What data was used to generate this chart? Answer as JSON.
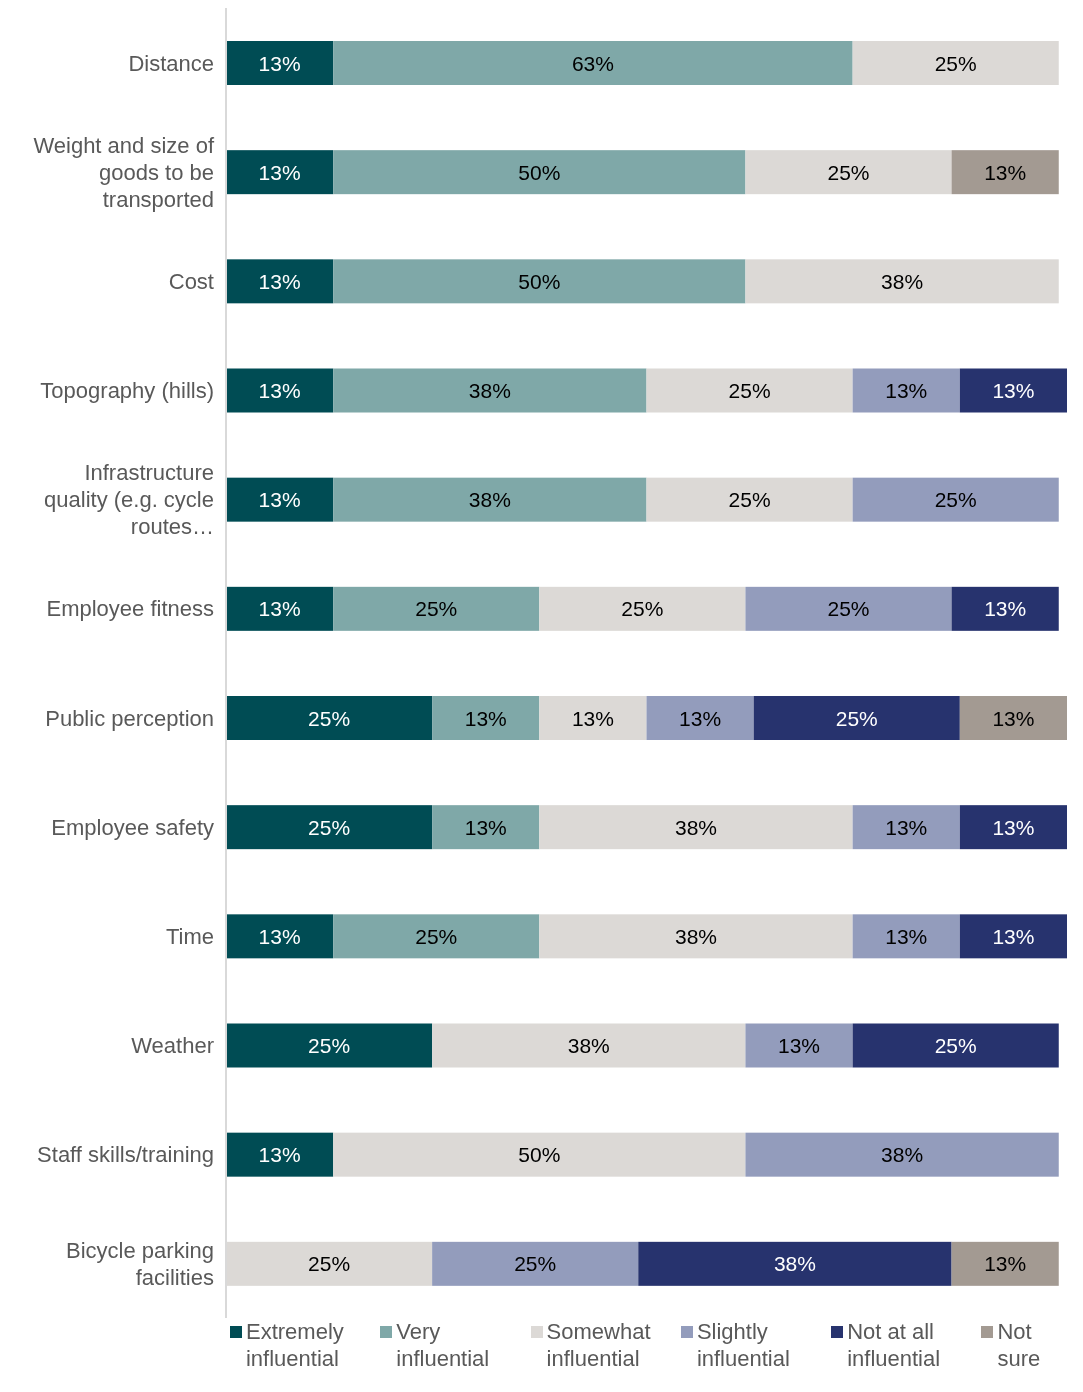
{
  "chart_data": {
    "type": "bar",
    "orientation": "horizontal",
    "stacked": true,
    "legend": "bottom",
    "categories": [
      "Distance",
      "Weight and size of goods to be transported",
      "Cost",
      "Topography (hills)",
      "Infrastructure quality (e.g. cycle routes…",
      "Employee fitness",
      "Public perception",
      "Employee safety",
      "Time",
      "Weather",
      "Staff skills/training",
      "Bicycle parking facilities"
    ],
    "series": [
      {
        "name": "Extremely influential",
        "color": "#004c54",
        "values": [
          13,
          13,
          13,
          13,
          13,
          13,
          25,
          25,
          13,
          25,
          13,
          null
        ],
        "value_labels": [
          "13%",
          "13%",
          "13%",
          "13%",
          "13%",
          "13%",
          "25%",
          "25%",
          "13%",
          "25%",
          "13%",
          null
        ]
      },
      {
        "name": "Very influential",
        "color": "#7fa8a8",
        "values": [
          63,
          50,
          50,
          38,
          38,
          25,
          13,
          13,
          25,
          null,
          null,
          null
        ],
        "value_labels": [
          "63%",
          "50%",
          "50%",
          "38%",
          "38%",
          "25%",
          "13%",
          "13%",
          "25%",
          null,
          null,
          null
        ]
      },
      {
        "name": "Somewhat influential",
        "color": "#dcd9d6",
        "values": [
          25,
          25,
          38,
          25,
          25,
          25,
          13,
          38,
          38,
          38,
          50,
          25
        ],
        "value_labels": [
          "25%",
          "25%",
          "38%",
          "25%",
          "25%",
          "25%",
          "13%",
          "38%",
          "38%",
          "38%",
          "50%",
          "25%"
        ]
      },
      {
        "name": "Slightly influential",
        "color": "#939cbc",
        "values": [
          null,
          null,
          null,
          13,
          25,
          25,
          13,
          13,
          13,
          13,
          38,
          25
        ],
        "value_labels": [
          null,
          null,
          null,
          "13%",
          "25%",
          "25%",
          "13%",
          "13%",
          "13%",
          "13%",
          "38%",
          "25%"
        ]
      },
      {
        "name": "Not at all influential",
        "color": "#27336e",
        "values": [
          null,
          null,
          null,
          13,
          null,
          13,
          25,
          13,
          13,
          25,
          null,
          38
        ],
        "value_labels": [
          null,
          null,
          null,
          "13%",
          null,
          "13%",
          "25%",
          "13%",
          "13%",
          "25%",
          null,
          "38%"
        ]
      },
      {
        "name": "Not sure",
        "color": "#a39a92",
        "values": [
          null,
          13,
          null,
          null,
          null,
          null,
          13,
          null,
          null,
          null,
          null,
          13
        ],
        "value_labels": [
          null,
          "13%",
          null,
          null,
          null,
          null,
          "13%",
          null,
          null,
          null,
          null,
          "13%"
        ]
      }
    ]
  }
}
